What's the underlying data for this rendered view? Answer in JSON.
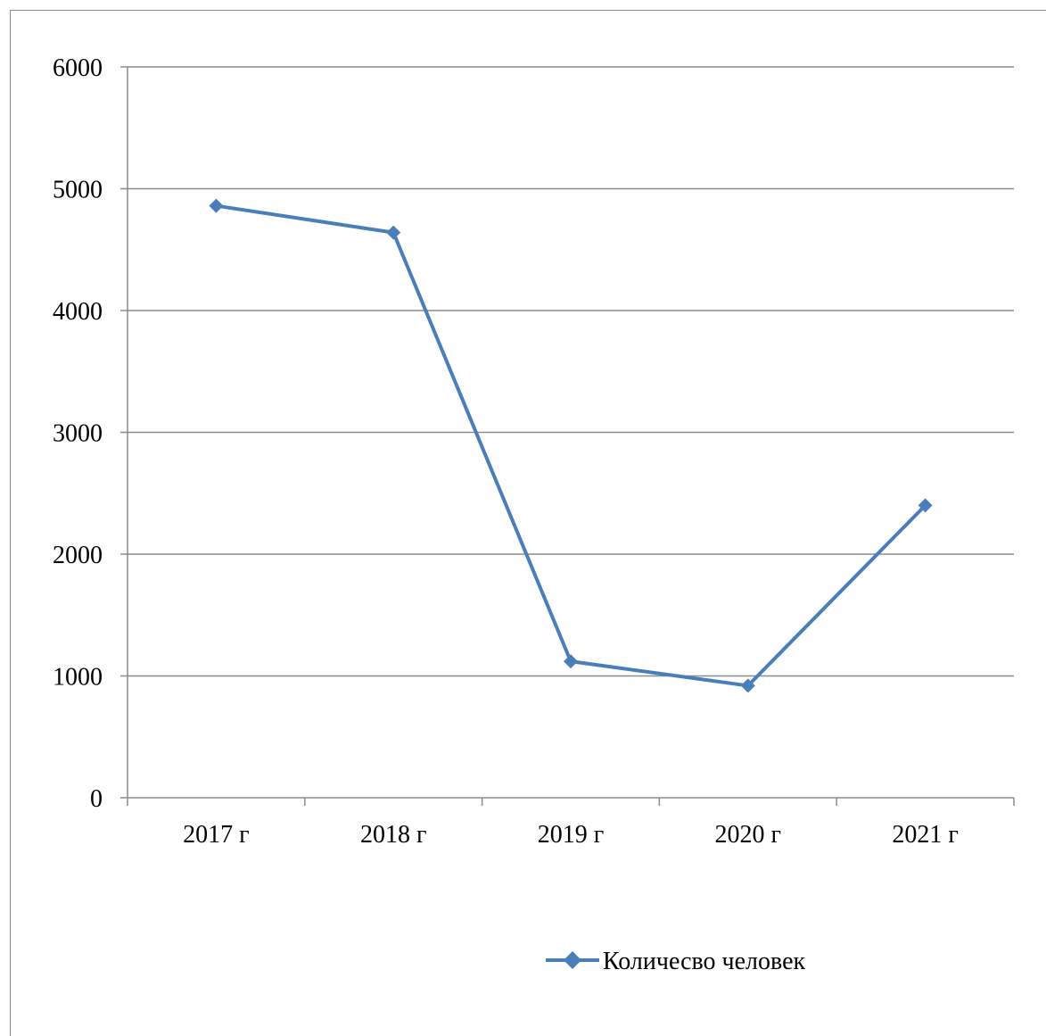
{
  "chart_data": {
    "type": "line",
    "categories": [
      "2017 г",
      "2018 г",
      "2019 г",
      "2020 г",
      "2021 г"
    ],
    "series": [
      {
        "name": "Количесво человек",
        "values": [
          4860,
          4640,
          1120,
          920,
          2400
        ],
        "color": "#4a7ebb",
        "marker": "diamond"
      }
    ],
    "ylim": [
      0,
      6000
    ],
    "yticks": [
      0,
      1000,
      2000,
      3000,
      4000,
      5000,
      6000
    ],
    "grid": true,
    "legend_position": "bottom"
  }
}
